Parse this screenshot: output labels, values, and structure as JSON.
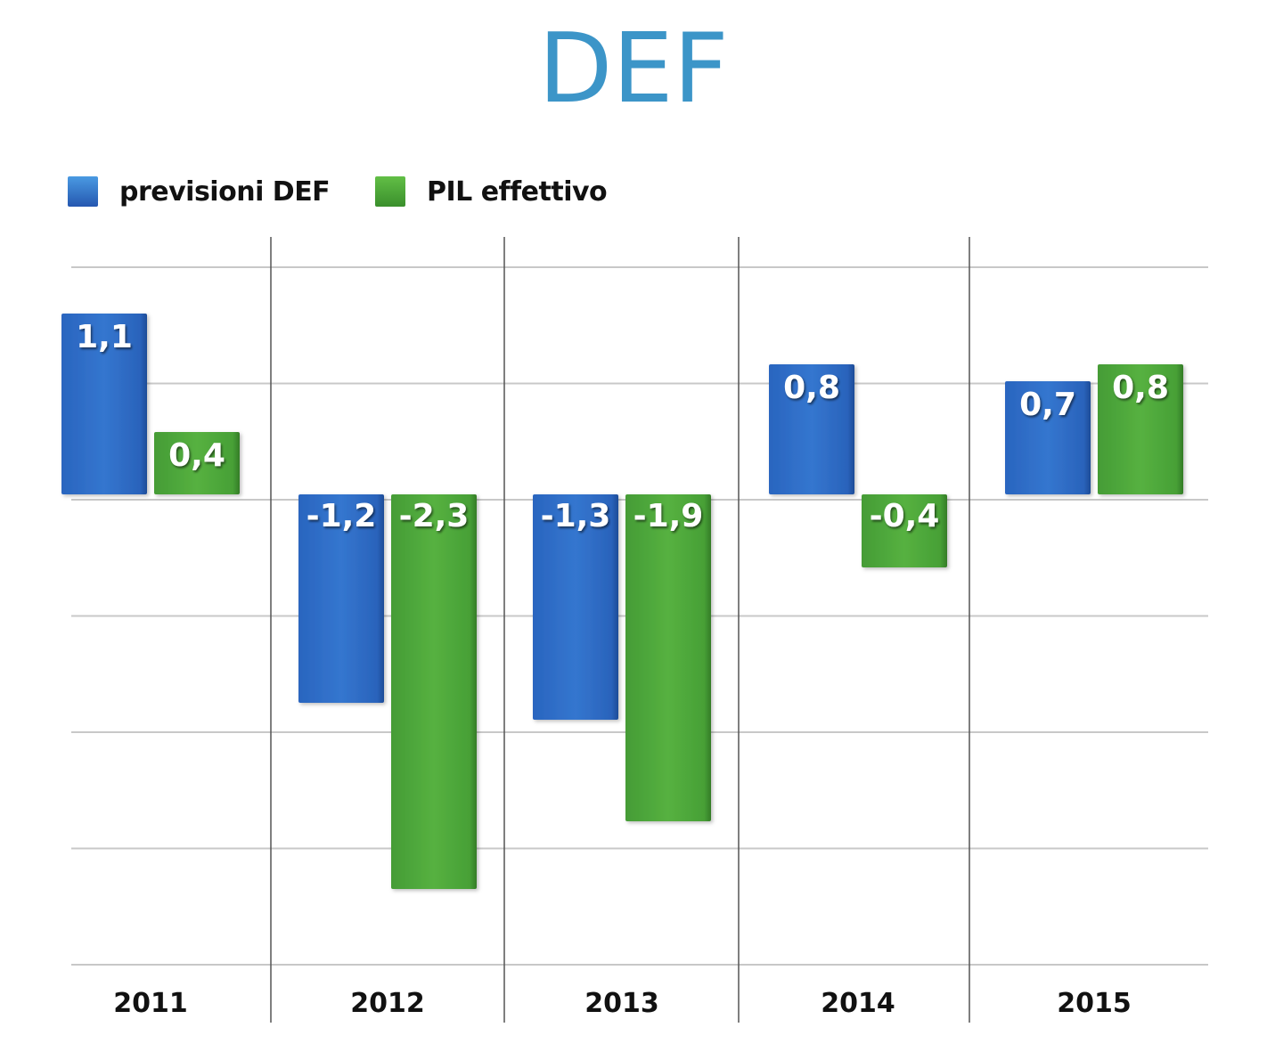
{
  "title": "DEF",
  "legend": [
    {
      "label": "previsioni DEF",
      "color": "#2b6cc4"
    },
    {
      "label": "PIL effettivo",
      "color": "#49a33a"
    }
  ],
  "colors": {
    "previsioni": "#2b6cc4",
    "previsioni_light": "#3f86d8",
    "effettivo": "#49a33a",
    "effettivo_light": "#63bb4a",
    "grid": "#c8c8c8",
    "divider": "#555555"
  },
  "chart_data": {
    "type": "bar",
    "title": "DEF",
    "categories": [
      "2011",
      "2012",
      "2013",
      "2014",
      "2015"
    ],
    "series": [
      {
        "name": "previsioni DEF",
        "values": [
          1.1,
          -1.2,
          -1.3,
          0.8,
          0.7
        ],
        "labels": [
          "1,1",
          "-1,2",
          "-1,3",
          "0,8",
          "0,7"
        ]
      },
      {
        "name": "PIL effettivo",
        "values": [
          0.4,
          -2.3,
          -1.9,
          -0.4,
          0.8
        ],
        "labels": [
          "0,4",
          "-2,3",
          "-1,9",
          "-0,4",
          "0,8"
        ]
      }
    ],
    "ylim": [
      -2.8,
      1.4
    ],
    "grid": true,
    "legend_position": "top-left",
    "xlabel": "",
    "ylabel": ""
  }
}
